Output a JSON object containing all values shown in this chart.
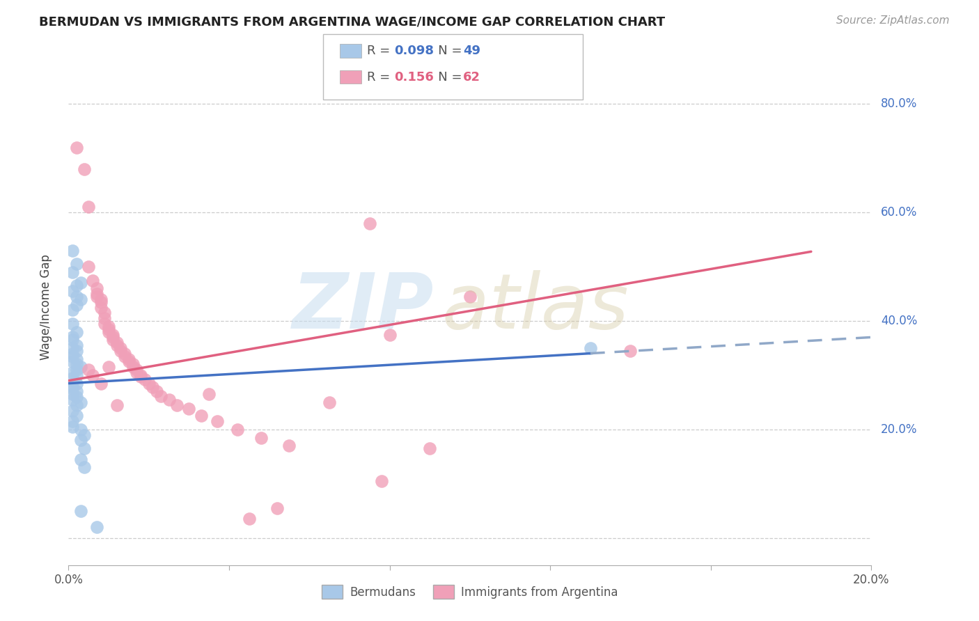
{
  "title": "BERMUDAN VS IMMIGRANTS FROM ARGENTINA WAGE/INCOME GAP CORRELATION CHART",
  "source": "Source: ZipAtlas.com",
  "ylabel": "Wage/Income Gap",
  "bermudans_color": "#a8c8e8",
  "argentina_color": "#f0a0b8",
  "trend_bermudans_color": "#4472c4",
  "trend_argentina_color": "#e06080",
  "trend_bermudans_dashed_color": "#90a8c8",
  "xlim": [
    0.0,
    0.2
  ],
  "ylim": [
    -0.05,
    0.9
  ],
  "bermudans_x": [
    0.001,
    0.002,
    0.001,
    0.003,
    0.002,
    0.001,
    0.002,
    0.003,
    0.002,
    0.001,
    0.001,
    0.002,
    0.001,
    0.001,
    0.002,
    0.001,
    0.002,
    0.001,
    0.001,
    0.002,
    0.001,
    0.002,
    0.003,
    0.002,
    0.001,
    0.002,
    0.001,
    0.002,
    0.001,
    0.001,
    0.002,
    0.001,
    0.002,
    0.001,
    0.003,
    0.002,
    0.001,
    0.002,
    0.001,
    0.001,
    0.003,
    0.004,
    0.003,
    0.004,
    0.003,
    0.004,
    0.003,
    0.13,
    0.007
  ],
  "bermudans_y": [
    0.53,
    0.505,
    0.49,
    0.47,
    0.465,
    0.455,
    0.445,
    0.44,
    0.43,
    0.42,
    0.395,
    0.38,
    0.37,
    0.365,
    0.355,
    0.35,
    0.345,
    0.34,
    0.335,
    0.33,
    0.325,
    0.32,
    0.315,
    0.31,
    0.305,
    0.3,
    0.295,
    0.285,
    0.28,
    0.275,
    0.27,
    0.265,
    0.26,
    0.255,
    0.25,
    0.245,
    0.235,
    0.225,
    0.215,
    0.205,
    0.2,
    0.19,
    0.18,
    0.165,
    0.145,
    0.13,
    0.05,
    0.35,
    0.02
  ],
  "argentina_x": [
    0.002,
    0.004,
    0.005,
    0.005,
    0.006,
    0.007,
    0.007,
    0.007,
    0.008,
    0.008,
    0.008,
    0.009,
    0.009,
    0.009,
    0.01,
    0.01,
    0.01,
    0.011,
    0.011,
    0.011,
    0.012,
    0.012,
    0.013,
    0.013,
    0.014,
    0.014,
    0.015,
    0.015,
    0.016,
    0.016,
    0.017,
    0.017,
    0.018,
    0.018,
    0.019,
    0.02,
    0.021,
    0.022,
    0.023,
    0.025,
    0.027,
    0.03,
    0.033,
    0.037,
    0.042,
    0.048,
    0.055,
    0.065,
    0.078,
    0.09,
    0.005,
    0.006,
    0.008,
    0.01,
    0.012,
    0.08,
    0.1,
    0.075,
    0.14,
    0.035,
    0.045,
    0.052
  ],
  "argentina_y": [
    0.72,
    0.68,
    0.61,
    0.5,
    0.475,
    0.46,
    0.45,
    0.445,
    0.44,
    0.435,
    0.425,
    0.415,
    0.405,
    0.395,
    0.39,
    0.385,
    0.38,
    0.375,
    0.37,
    0.365,
    0.36,
    0.355,
    0.35,
    0.345,
    0.34,
    0.335,
    0.33,
    0.325,
    0.32,
    0.315,
    0.31,
    0.305,
    0.3,
    0.298,
    0.292,
    0.285,
    0.278,
    0.27,
    0.262,
    0.255,
    0.245,
    0.238,
    0.225,
    0.215,
    0.2,
    0.185,
    0.17,
    0.25,
    0.105,
    0.165,
    0.31,
    0.3,
    0.285,
    0.315,
    0.245,
    0.375,
    0.445,
    0.58,
    0.345,
    0.265,
    0.035,
    0.055
  ],
  "r_bermudans": 0.098,
  "n_bermudans": 49,
  "r_argentina": 0.156,
  "n_argentina": 62
}
